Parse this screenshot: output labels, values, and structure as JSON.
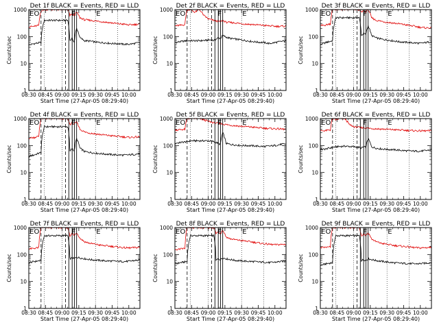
{
  "legend_text": "BLACK = Events, RED = LLD",
  "xlabel": "Start Time (27-Apr-05 08:29:40)",
  "ylabel": "Counts/sec",
  "x_tick_labels": [
    "08:30",
    "08:45",
    "09:00",
    "09:15",
    "09:30",
    "09:45",
    "10:00"
  ],
  "y_tick_labels": [
    "1",
    "10",
    "100",
    "1000"
  ],
  "region_markers": [
    "E",
    "O",
    "F",
    "E"
  ],
  "colors": {
    "events": "#000000",
    "lld": "#e00000",
    "axes": "#000000"
  },
  "chart_data": [
    {
      "type": "line",
      "title": "Det 1f",
      "x_unit": "minutes after 08:30",
      "xlim": [
        0,
        100
      ],
      "ylim": [
        1,
        1000
      ],
      "y_scale": "log",
      "series": [
        {
          "name": "Events",
          "x": [
            0,
            5,
            11,
            14,
            22,
            30,
            35,
            37,
            39,
            41,
            43,
            46,
            50,
            55,
            60,
            65,
            70,
            75,
            80,
            85,
            90,
            95,
            100
          ],
          "y": [
            48,
            55,
            60,
            400,
            400,
            400,
            400,
            70,
            85,
            60,
            200,
            90,
            70,
            68,
            62,
            60,
            58,
            55,
            55,
            52,
            52,
            55,
            60
          ]
        },
        {
          "name": "LLD",
          "x": [
            0,
            5,
            9,
            11,
            14,
            22,
            30,
            35,
            37,
            39,
            41,
            43,
            46,
            50,
            55,
            60,
            65,
            70,
            75,
            80,
            85,
            90,
            95,
            100
          ],
          "y": [
            230,
            240,
            260,
            900,
            1000,
            1000,
            1000,
            1000,
            600,
            700,
            600,
            800,
            500,
            420,
            400,
            380,
            360,
            340,
            320,
            300,
            290,
            270,
            280,
            290
          ]
        }
      ]
    },
    {
      "type": "line",
      "title": "Det 2f",
      "x_unit": "minutes after 08:30",
      "xlim": [
        0,
        100
      ],
      "ylim": [
        1,
        1000
      ],
      "y_scale": "log",
      "series": [
        {
          "name": "Events",
          "x": [
            0,
            5,
            11,
            14,
            22,
            28,
            30,
            33,
            35,
            37,
            39,
            41,
            43,
            46,
            50,
            55,
            60,
            65,
            70,
            75,
            80,
            85,
            90,
            95,
            100
          ],
          "y": [
            60,
            65,
            70,
            70,
            70,
            72,
            75,
            75,
            70,
            80,
            90,
            85,
            110,
            95,
            85,
            80,
            75,
            70,
            65,
            62,
            60,
            55,
            60,
            65,
            70
          ]
        },
        {
          "name": "LLD",
          "x": [
            0,
            5,
            9,
            11,
            14,
            18,
            22,
            26,
            30,
            35,
            37,
            39,
            41,
            43,
            46,
            50,
            55,
            60,
            65,
            70,
            75,
            80,
            85,
            90,
            95,
            100
          ],
          "y": [
            250,
            260,
            280,
            1000,
            1000,
            800,
            1000,
            600,
            450,
            400,
            380,
            370,
            350,
            400,
            340,
            330,
            320,
            300,
            290,
            280,
            270,
            260,
            250,
            240,
            240,
            245
          ]
        }
      ]
    },
    {
      "type": "line",
      "title": "Det 3f",
      "x_unit": "minutes after 08:30",
      "xlim": [
        0,
        100
      ],
      "ylim": [
        1,
        1000
      ],
      "y_scale": "log",
      "series": [
        {
          "name": "Events",
          "x": [
            0,
            5,
            11,
            14,
            22,
            30,
            35,
            37,
            39,
            41,
            43,
            46,
            50,
            55,
            60,
            65,
            70,
            75,
            80,
            85,
            90,
            95,
            100
          ],
          "y": [
            50,
            60,
            70,
            500,
            500,
            500,
            500,
            110,
            130,
            120,
            250,
            110,
            90,
            80,
            75,
            70,
            65,
            62,
            60,
            58,
            56,
            60,
            65
          ]
        },
        {
          "name": "LLD",
          "x": [
            0,
            5,
            9,
            11,
            14,
            22,
            30,
            35,
            37,
            39,
            41,
            43,
            46,
            50,
            55,
            60,
            65,
            70,
            75,
            80,
            85,
            90,
            95,
            100
          ],
          "y": [
            250,
            270,
            300,
            1000,
            1000,
            1000,
            1000,
            1000,
            800,
            900,
            800,
            1000,
            500,
            400,
            370,
            340,
            320,
            300,
            280,
            260,
            240,
            220,
            210,
            210
          ]
        }
      ]
    },
    {
      "type": "line",
      "title": "Det 4f",
      "x_unit": "minutes after 08:30",
      "xlim": [
        0,
        100
      ],
      "ylim": [
        1,
        1000
      ],
      "y_scale": "log",
      "series": [
        {
          "name": "Events",
          "x": [
            0,
            5,
            11,
            14,
            22,
            30,
            35,
            37,
            39,
            41,
            43,
            46,
            50,
            55,
            60,
            65,
            70,
            75,
            80,
            85,
            90,
            95,
            100
          ],
          "y": [
            40,
            45,
            55,
            500,
            500,
            500,
            500,
            60,
            80,
            60,
            180,
            80,
            60,
            56,
            52,
            50,
            48,
            46,
            45,
            44,
            45,
            47,
            50
          ]
        },
        {
          "name": "LLD",
          "x": [
            0,
            5,
            9,
            11,
            14,
            22,
            30,
            35,
            37,
            39,
            41,
            43,
            46,
            50,
            55,
            60,
            65,
            70,
            75,
            80,
            85,
            90,
            95,
            100
          ],
          "y": [
            190,
            200,
            220,
            1000,
            1000,
            1000,
            1000,
            1000,
            600,
            700,
            600,
            750,
            400,
            320,
            290,
            270,
            255,
            240,
            230,
            220,
            210,
            200,
            205,
            210
          ]
        }
      ]
    },
    {
      "type": "line",
      "title": "Det 5f",
      "x_unit": "minutes after 08:30",
      "xlim": [
        0,
        100
      ],
      "ylim": [
        1,
        1000
      ],
      "y_scale": "log",
      "series": [
        {
          "name": "Events",
          "x": [
            0,
            5,
            11,
            14,
            22,
            30,
            35,
            37,
            39,
            41,
            43,
            46,
            50,
            55,
            60,
            65,
            70,
            75,
            80,
            85,
            90,
            95,
            100
          ],
          "y": [
            120,
            130,
            140,
            150,
            150,
            150,
            140,
            130,
            120,
            110,
            300,
            120,
            110,
            105,
            100,
            100,
            98,
            95,
            92,
            95,
            100,
            110,
            115
          ]
        },
        {
          "name": "LLD",
          "x": [
            0,
            5,
            9,
            11,
            14,
            18,
            22,
            26,
            30,
            35,
            40,
            46,
            50,
            55,
            60,
            65,
            70,
            75,
            80,
            85,
            90,
            95,
            100
          ],
          "y": [
            380,
            390,
            400,
            1000,
            1000,
            1000,
            1000,
            900,
            800,
            700,
            650,
            600,
            570,
            540,
            520,
            500,
            480,
            460,
            440,
            430,
            420,
            410,
            400
          ]
        }
      ]
    },
    {
      "type": "line",
      "title": "Det 6f",
      "x_unit": "minutes after 08:30",
      "xlim": [
        0,
        100
      ],
      "ylim": [
        1,
        1000
      ],
      "y_scale": "log",
      "series": [
        {
          "name": "Events",
          "x": [
            0,
            5,
            11,
            14,
            22,
            30,
            35,
            37,
            39,
            41,
            43,
            46,
            50,
            55,
            60,
            65,
            70,
            75,
            80,
            85,
            90,
            95,
            100
          ],
          "y": [
            70,
            75,
            85,
            90,
            95,
            90,
            85,
            80,
            90,
            85,
            180,
            90,
            80,
            75,
            72,
            70,
            68,
            65,
            63,
            62,
            62,
            65,
            70
          ]
        },
        {
          "name": "LLD",
          "x": [
            0,
            5,
            9,
            11,
            14,
            18,
            22,
            26,
            30,
            35,
            40,
            46,
            50,
            55,
            60,
            65,
            70,
            75,
            80,
            85,
            90,
            95,
            100
          ],
          "y": [
            350,
            360,
            380,
            1000,
            900,
            1000,
            1000,
            600,
            500,
            470,
            450,
            430,
            420,
            410,
            400,
            390,
            380,
            370,
            360,
            355,
            350,
            350,
            350
          ]
        }
      ]
    },
    {
      "type": "line",
      "title": "Det 7f",
      "x_unit": "minutes after 08:30",
      "xlim": [
        0,
        100
      ],
      "ylim": [
        1,
        1000
      ],
      "y_scale": "log",
      "series": [
        {
          "name": "Events",
          "x": [
            0,
            5,
            11,
            14,
            22,
            30,
            35,
            37,
            39,
            41,
            43,
            46,
            50,
            55,
            60,
            65,
            70,
            75,
            80,
            85,
            90,
            95,
            100
          ],
          "y": [
            50,
            55,
            60,
            500,
            500,
            500,
            500,
            70,
            75,
            70,
            80,
            75,
            70,
            65,
            62,
            60,
            58,
            57,
            56,
            55,
            56,
            60,
            62
          ]
        },
        {
          "name": "LLD",
          "x": [
            0,
            5,
            9,
            11,
            14,
            22,
            30,
            35,
            37,
            39,
            41,
            43,
            46,
            50,
            55,
            60,
            65,
            70,
            75,
            80,
            85,
            90,
            95,
            100
          ],
          "y": [
            160,
            170,
            180,
            1000,
            1000,
            1000,
            1000,
            1000,
            500,
            600,
            500,
            650,
            400,
            300,
            260,
            240,
            220,
            210,
            200,
            190,
            180,
            175,
            180,
            185
          ]
        }
      ]
    },
    {
      "type": "line",
      "title": "Det 8f",
      "x_unit": "minutes after 08:30",
      "xlim": [
        0,
        100
      ],
      "ylim": [
        1,
        1000
      ],
      "y_scale": "log",
      "series": [
        {
          "name": "Events",
          "x": [
            0,
            5,
            11,
            14,
            22,
            30,
            35,
            37,
            39,
            41,
            43,
            46,
            50,
            55,
            60,
            65,
            70,
            75,
            80,
            85,
            90,
            95,
            100
          ],
          "y": [
            45,
            50,
            55,
            500,
            500,
            500,
            500,
            60,
            70,
            65,
            75,
            70,
            65,
            60,
            58,
            56,
            55,
            53,
            52,
            50,
            52,
            55,
            58
          ]
        },
        {
          "name": "LLD",
          "x": [
            0,
            5,
            9,
            11,
            14,
            22,
            30,
            35,
            37,
            39,
            41,
            43,
            46,
            50,
            55,
            60,
            65,
            70,
            75,
            80,
            85,
            90,
            95,
            100
          ],
          "y": [
            150,
            160,
            170,
            1000,
            1000,
            1000,
            1000,
            1000,
            600,
            700,
            600,
            800,
            450,
            380,
            350,
            330,
            310,
            290,
            270,
            250,
            240,
            230,
            235,
            240
          ]
        }
      ]
    },
    {
      "type": "line",
      "title": "Det 9f",
      "x_unit": "minutes after 08:30",
      "xlim": [
        0,
        100
      ],
      "ylim": [
        1,
        1000
      ],
      "y_scale": "log",
      "series": [
        {
          "name": "Events",
          "x": [
            0,
            5,
            11,
            14,
            22,
            30,
            35,
            37,
            39,
            41,
            43,
            46,
            50,
            55,
            60,
            65,
            70,
            75,
            80,
            85,
            90,
            95,
            100
          ],
          "y": [
            40,
            45,
            50,
            500,
            500,
            500,
            500,
            60,
            65,
            60,
            70,
            65,
            60,
            56,
            53,
            50,
            48,
            47,
            46,
            45,
            46,
            48,
            50
          ]
        },
        {
          "name": "LLD",
          "x": [
            0,
            5,
            9,
            11,
            14,
            22,
            30,
            35,
            37,
            39,
            41,
            43,
            46,
            50,
            55,
            60,
            65,
            70,
            75,
            80,
            85,
            90,
            95,
            100
          ],
          "y": [
            180,
            185,
            190,
            1000,
            1000,
            1000,
            1000,
            1000,
            500,
            600,
            500,
            650,
            380,
            300,
            260,
            240,
            220,
            210,
            200,
            190,
            180,
            175,
            180,
            185
          ]
        }
      ]
    }
  ]
}
